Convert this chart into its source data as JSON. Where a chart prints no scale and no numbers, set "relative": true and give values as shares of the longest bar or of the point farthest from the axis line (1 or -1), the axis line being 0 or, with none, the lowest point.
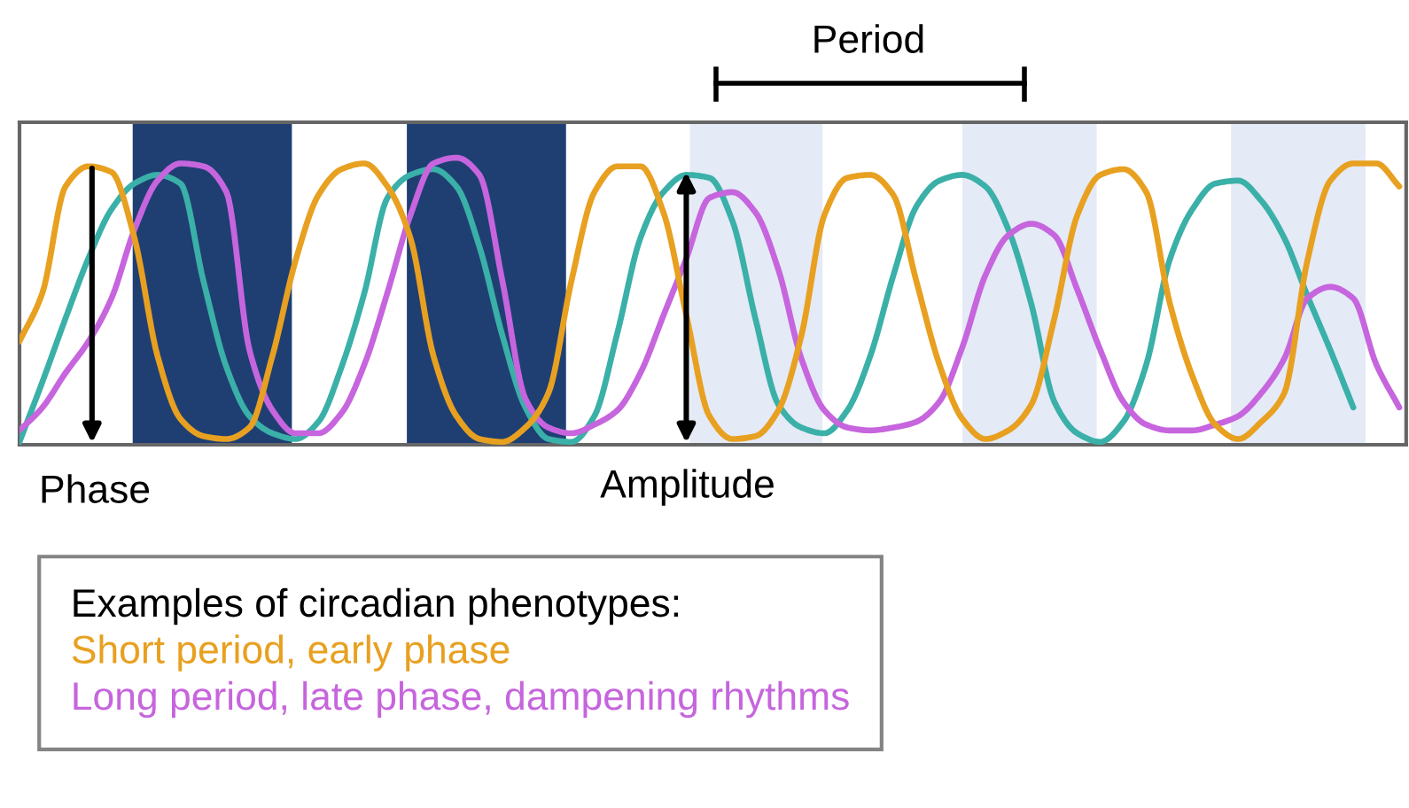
{
  "chart_data": {
    "type": "line",
    "relative": true,
    "categories": [
      null,
      null,
      null,
      null,
      null,
      null,
      null,
      null,
      null,
      null,
      null,
      null,
      null,
      null,
      null,
      null,
      null,
      null,
      null,
      null,
      null,
      null,
      null,
      null,
      null,
      null,
      null,
      null,
      null,
      null,
      null,
      null,
      null,
      null,
      null,
      null,
      null,
      null,
      null,
      null,
      null,
      null,
      null,
      null,
      null,
      null,
      null,
      null,
      null,
      null,
      null,
      null,
      null,
      null,
      null,
      null,
      null,
      null,
      null,
      null,
      null
    ],
    "series": [
      {
        "name": "Short period, early phase",
        "color": "#e8a020",
        "values": [
          0.36,
          0.53,
          0.9,
          0.97,
          0.95,
          0.72,
          0.31,
          0.09,
          0.03,
          0.02,
          0.06,
          0.31,
          0.64,
          0.87,
          0.96,
          0.98,
          0.9,
          0.72,
          0.31,
          0.1,
          0.02,
          0.01,
          0.06,
          0.18,
          0.57,
          0.88,
          0.97,
          0.97,
          0.81,
          0.45,
          0.1,
          0.02,
          0.03,
          0.12,
          0.38,
          0.8,
          0.93,
          0.94,
          0.87,
          0.57,
          0.28,
          0.09,
          0.02,
          0.05,
          0.14,
          0.44,
          0.8,
          0.94,
          0.96,
          0.88,
          0.5,
          0.24,
          0.07,
          0.02,
          0.08,
          0.18,
          0.64,
          0.92,
          0.98,
          0.98,
          0.9
        ]
      },
      {
        "name": "Long period, late phase, dampening rhythms",
        "color": "#c665dd",
        "values": [
          0.05,
          0.13,
          0.25,
          0.36,
          0.51,
          0.75,
          0.92,
          0.98,
          0.97,
          0.88,
          0.33,
          0.12,
          0.04,
          0.04,
          0.11,
          0.28,
          0.53,
          0.8,
          0.98,
          1.0,
          0.94,
          0.57,
          0.16,
          0.06,
          0.04,
          0.07,
          0.12,
          0.25,
          0.45,
          0.65,
          0.86,
          0.88,
          0.81,
          0.61,
          0.3,
          0.12,
          0.06,
          0.05,
          0.06,
          0.08,
          0.15,
          0.34,
          0.59,
          0.73,
          0.77,
          0.73,
          0.54,
          0.33,
          0.15,
          0.07,
          0.05,
          0.05,
          0.07,
          0.1,
          0.18,
          0.3,
          0.51,
          0.55,
          0.51,
          0.28,
          0.13
        ]
      },
      {
        "color": "#3ab0a8",
        "values": [
          0.01,
          0.22,
          0.44,
          0.65,
          0.82,
          0.91,
          0.94,
          0.91,
          0.57,
          0.27,
          0.1,
          0.04,
          0.02,
          0.08,
          0.27,
          0.53,
          0.86,
          0.94,
          0.96,
          0.9,
          0.69,
          0.38,
          0.13,
          0.02,
          0.01,
          0.1,
          0.39,
          0.72,
          0.88,
          0.94,
          0.93,
          0.78,
          0.44,
          0.14,
          0.06,
          0.04,
          0.12,
          0.31,
          0.59,
          0.83,
          0.92,
          0.94,
          0.9,
          0.75,
          0.49,
          0.15,
          0.04,
          0.01,
          0.08,
          0.28,
          0.64,
          0.82,
          0.91,
          0.92,
          0.85,
          0.72,
          0.52,
          0.33,
          0.13,
          null,
          null
        ]
      }
    ],
    "annotations": [
      "Period",
      "Phase",
      "Amplitude"
    ],
    "legend_title": "Examples of circadian phenotypes:",
    "legend": "bottom left",
    "marker": "none",
    "line_style": "solid"
  }
}
